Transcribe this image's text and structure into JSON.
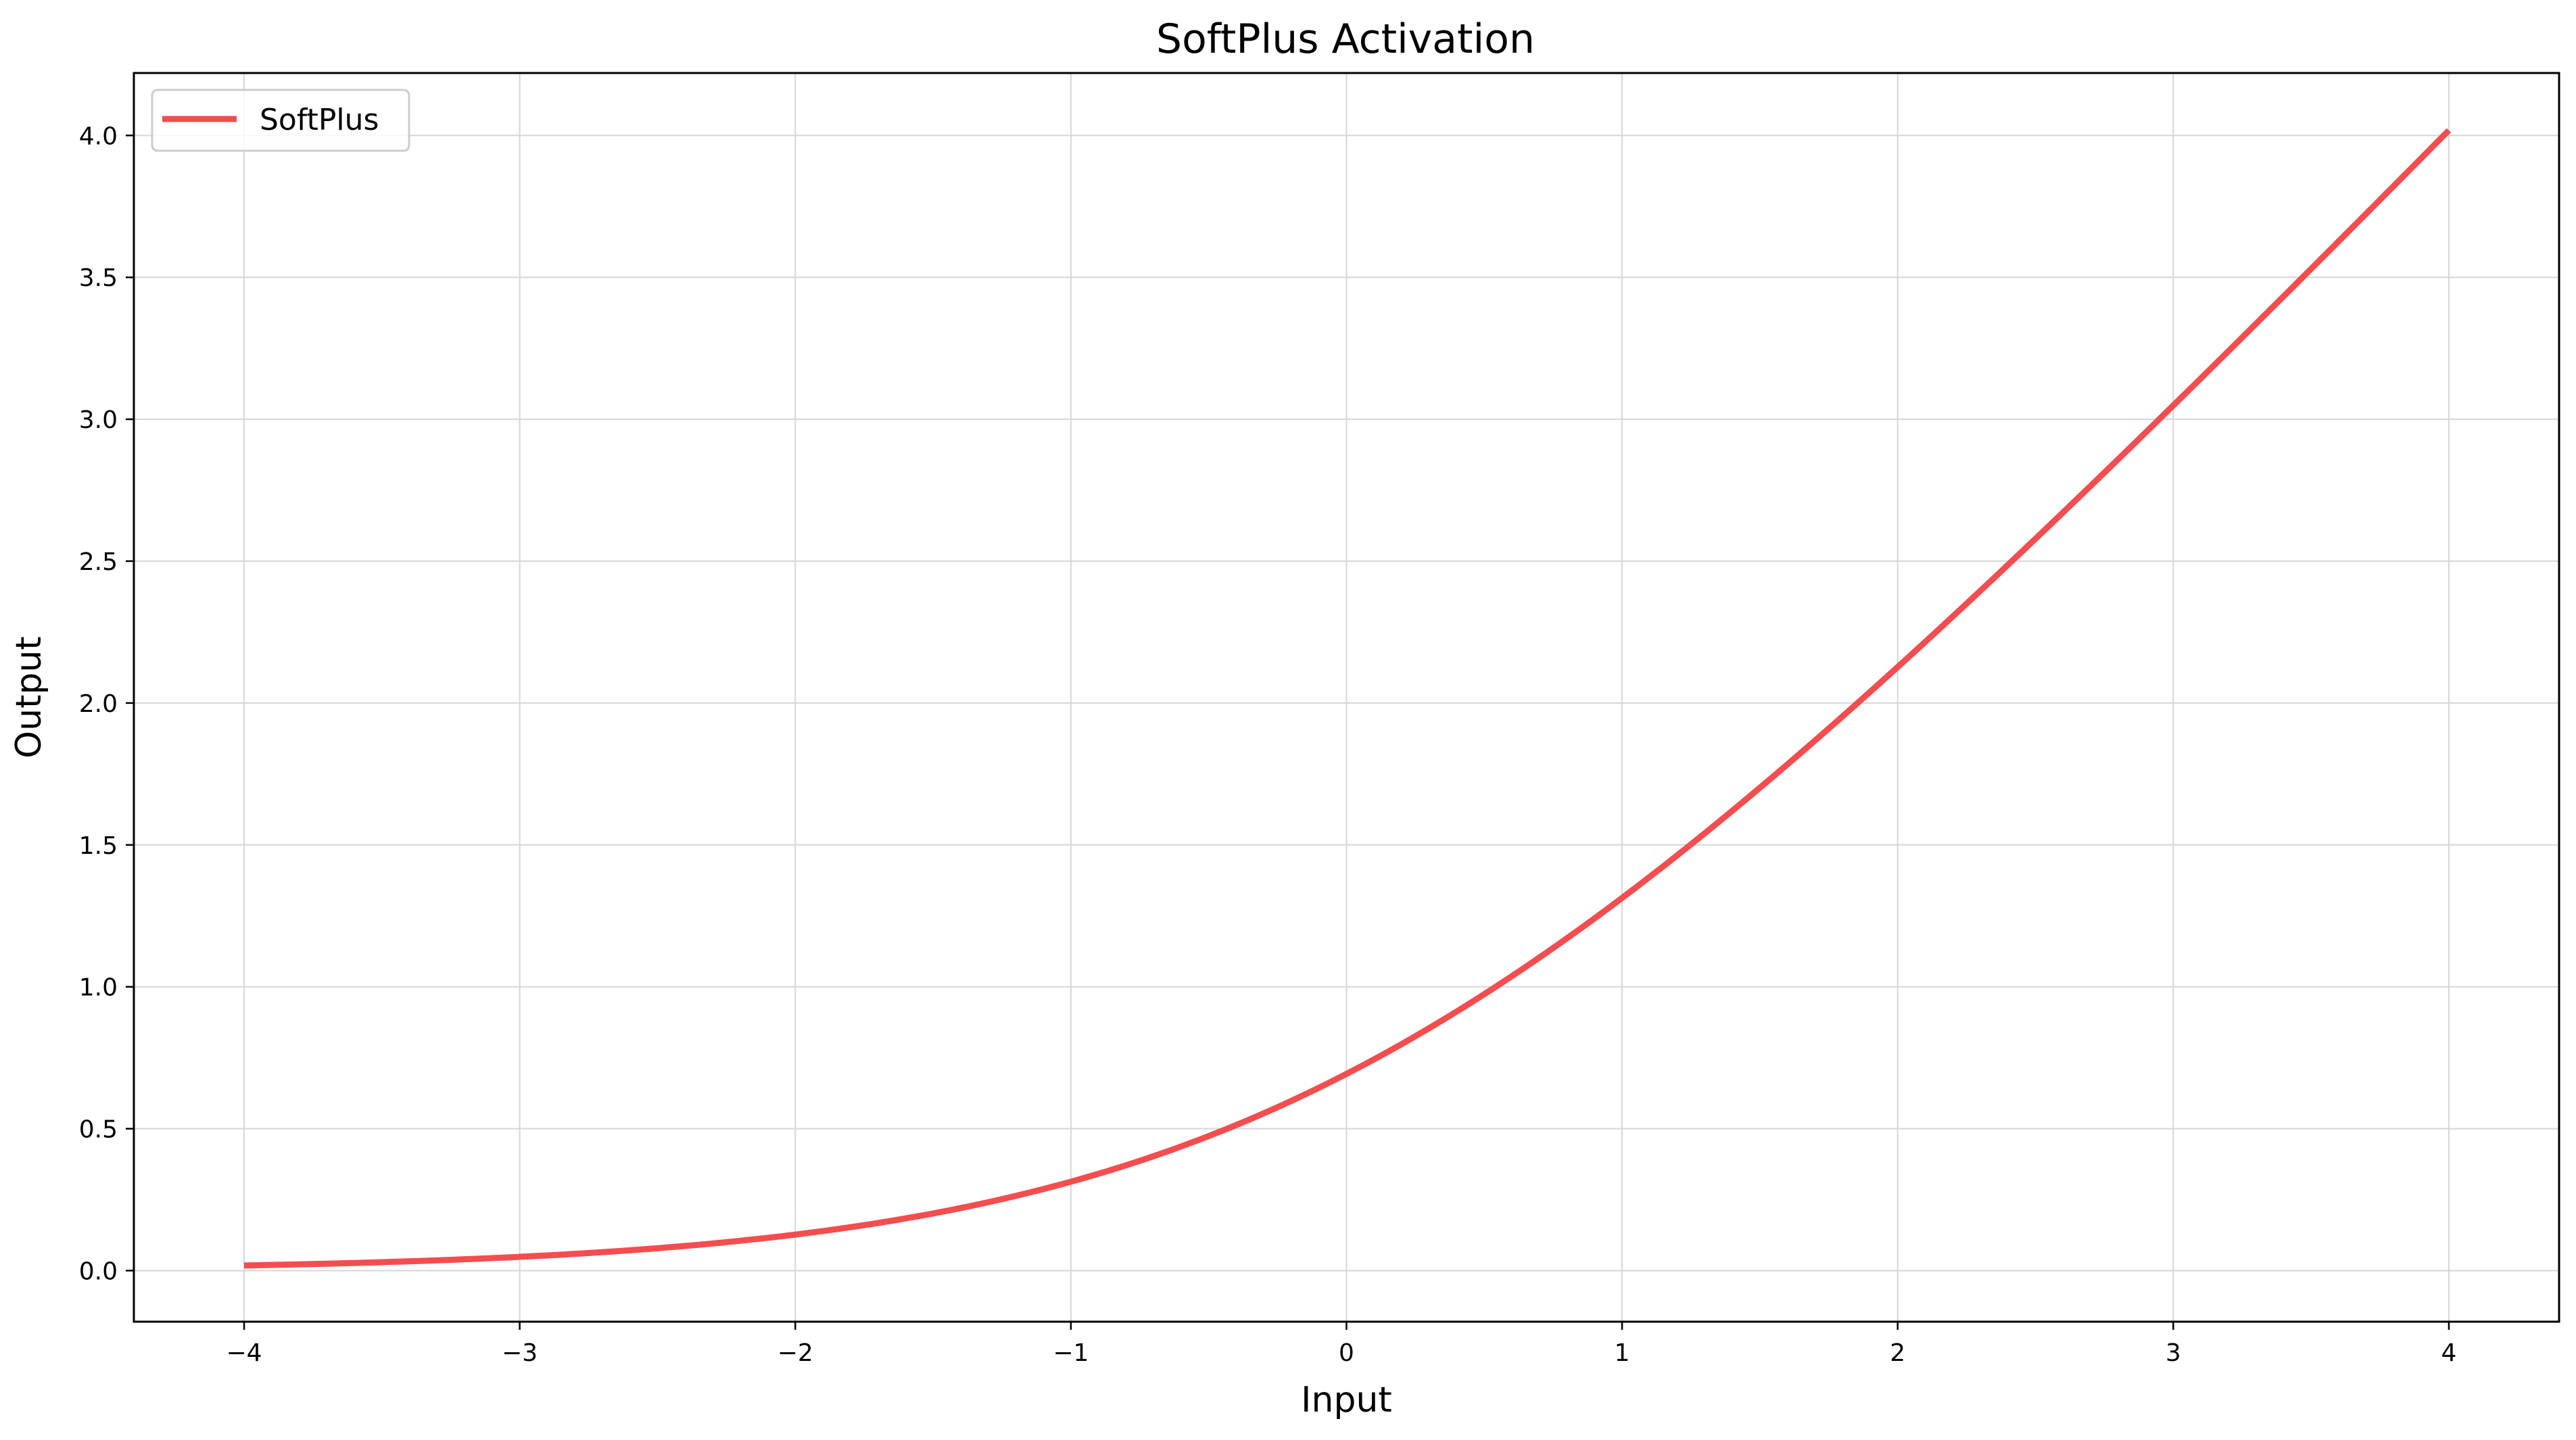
{
  "chart_data": {
    "type": "line",
    "title": "SoftPlus Activation",
    "xlabel": "Input",
    "ylabel": "Output",
    "xlim": [
      -4.4,
      4.4
    ],
    "ylim": [
      -0.18,
      4.22
    ],
    "xticks": [
      -4,
      -3,
      -2,
      -1,
      0,
      1,
      2,
      3,
      4
    ],
    "xtick_labels": [
      "−4",
      "−3",
      "−2",
      "−1",
      "0",
      "1",
      "2",
      "3",
      "4"
    ],
    "yticks": [
      0.0,
      0.5,
      1.0,
      1.5,
      2.0,
      2.5,
      3.0,
      3.5,
      4.0
    ],
    "ytick_labels": [
      "0.0",
      "0.5",
      "1.0",
      "1.5",
      "2.0",
      "2.5",
      "3.0",
      "3.5",
      "4.0"
    ],
    "grid": true,
    "legend_position": "top-left",
    "series": [
      {
        "name": "SoftPlus",
        "color": "#f44d4f",
        "x": [
          -4.0,
          -3.5,
          -3.0,
          -2.5,
          -2.0,
          -1.5,
          -1.0,
          -0.5,
          0.0,
          0.5,
          1.0,
          1.5,
          2.0,
          2.5,
          3.0,
          3.5,
          4.0
        ],
        "y": [
          0.018,
          0.03,
          0.049,
          0.079,
          0.127,
          0.201,
          0.313,
          0.474,
          0.693,
          0.974,
          1.313,
          1.701,
          2.127,
          2.579,
          3.049,
          3.53,
          4.018
        ]
      }
    ]
  }
}
